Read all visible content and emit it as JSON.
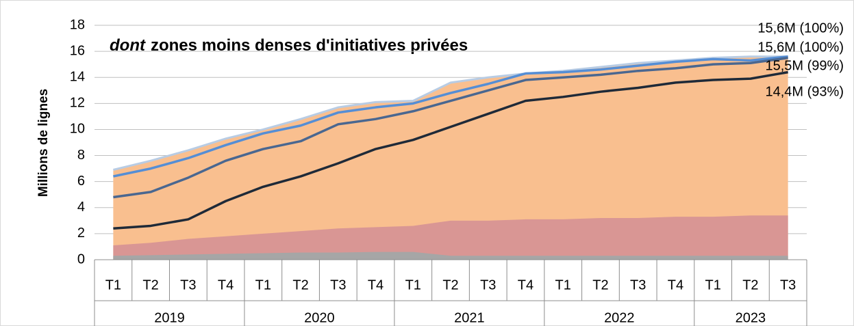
{
  "chart_data": {
    "type": "area",
    "title_emphasis": "dont",
    "title": "zones moins denses d'initiatives privées",
    "ylabel": "Millions de lignes",
    "categories": [
      "T1",
      "T2",
      "T3",
      "T4",
      "T1",
      "T2",
      "T3",
      "T4",
      "T1",
      "T2",
      "T3",
      "T4",
      "T1",
      "T2",
      "T3",
      "T4",
      "T1",
      "T2",
      "T3"
    ],
    "category_years": [
      "2019",
      "2019",
      "2019",
      "2019",
      "2020",
      "2020",
      "2020",
      "2020",
      "2021",
      "2021",
      "2021",
      "2021",
      "2022",
      "2022",
      "2022",
      "2022",
      "2023",
      "2023",
      "2023"
    ],
    "ylim": [
      0,
      18
    ],
    "yticks": [
      0,
      2,
      4,
      6,
      8,
      10,
      12,
      14,
      16,
      18
    ],
    "grid": true,
    "series": [
      {
        "kind": "area",
        "color": "#f9bf8f",
        "line_color": "#b8cce4",
        "end_label": "15,6M (100%)",
        "values": [
          6.9,
          7.6,
          8.4,
          9.3,
          10.0,
          10.8,
          11.7,
          12.1,
          12.2,
          13.6,
          14.0,
          14.3,
          14.5,
          14.8,
          15.1,
          15.3,
          15.5,
          15.6,
          15.6
        ]
      },
      {
        "kind": "area",
        "color": "#d99694",
        "values": [
          1.1,
          1.3,
          1.6,
          1.8,
          2.0,
          2.2,
          2.4,
          2.5,
          2.6,
          3.0,
          3.0,
          3.1,
          3.1,
          3.2,
          3.2,
          3.3,
          3.3,
          3.4,
          3.4
        ]
      },
      {
        "kind": "area",
        "color": "#a6a6a6",
        "values": [
          0.3,
          0.35,
          0.4,
          0.45,
          0.5,
          0.55,
          0.55,
          0.6,
          0.6,
          0.3,
          0.3,
          0.3,
          0.3,
          0.3,
          0.3,
          0.3,
          0.3,
          0.3,
          0.3
        ]
      },
      {
        "kind": "line",
        "color": "#558ed5",
        "end_label": "15,6M (100%)",
        "values": [
          6.4,
          7.0,
          7.8,
          8.8,
          9.7,
          10.3,
          11.3,
          11.7,
          12.0,
          12.8,
          13.5,
          14.3,
          14.4,
          14.6,
          14.9,
          15.2,
          15.4,
          15.3,
          15.6
        ]
      },
      {
        "kind": "line",
        "color": "#4a6790",
        "end_label": "15,5M (99%)",
        "values": [
          4.8,
          5.2,
          6.3,
          7.6,
          8.5,
          9.1,
          10.4,
          10.8,
          11.4,
          12.2,
          13.0,
          13.8,
          14.0,
          14.2,
          14.5,
          14.7,
          15.0,
          15.1,
          15.5
        ]
      },
      {
        "kind": "line",
        "color": "#1f2a38",
        "end_label": "14,4M (93%)",
        "values": [
          2.4,
          2.6,
          3.1,
          4.5,
          5.6,
          6.4,
          7.4,
          8.5,
          9.2,
          10.2,
          11.2,
          12.2,
          12.5,
          12.9,
          13.2,
          13.6,
          13.8,
          13.9,
          14.4
        ]
      }
    ]
  }
}
